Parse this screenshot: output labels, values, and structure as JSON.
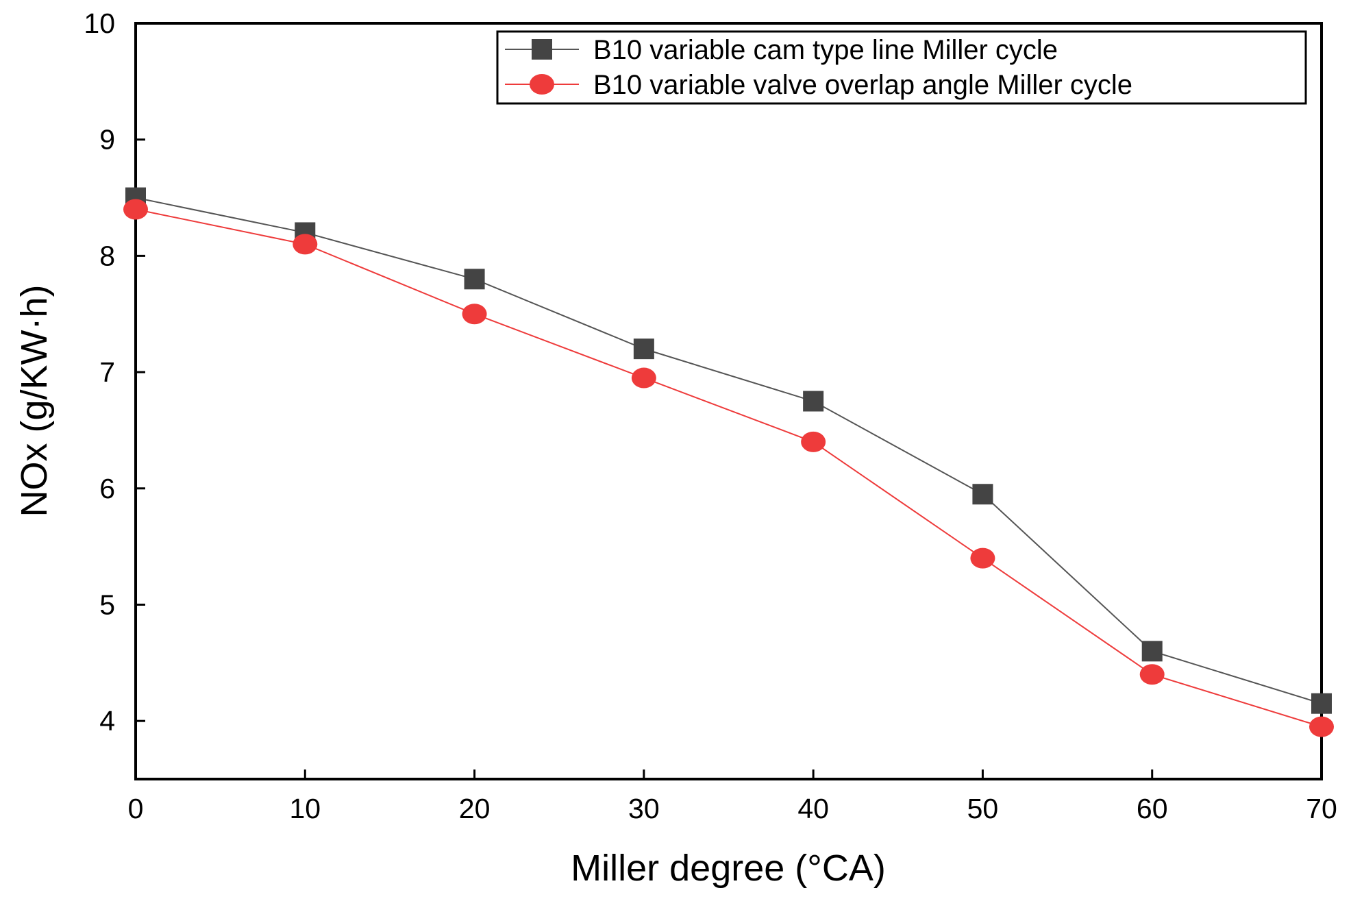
{
  "chart_data": {
    "type": "line",
    "title": "",
    "xlabel": "Miller degree (°CA)",
    "ylabel": "NOx (g/KW·h)",
    "x": [
      0,
      10,
      20,
      30,
      40,
      50,
      60,
      70
    ],
    "xlim": [
      0,
      70
    ],
    "ylim": [
      3.5,
      10
    ],
    "xticks": [
      0,
      10,
      20,
      30,
      40,
      50,
      60,
      70
    ],
    "yticks": [
      4,
      5,
      6,
      7,
      8,
      9,
      10
    ],
    "grid": false,
    "legend_position": "top-right",
    "series": [
      {
        "name": "B10 variable cam type line Miller cycle",
        "color": "#555555",
        "marker": "square",
        "values": [
          8.5,
          8.2,
          7.8,
          7.2,
          6.75,
          5.95,
          4.6,
          4.15
        ]
      },
      {
        "name": "B10 variable valve overlap angle Miller cycle",
        "color": "#ee3b3b",
        "marker": "circle",
        "values": [
          8.4,
          8.1,
          7.5,
          6.95,
          6.4,
          5.4,
          4.4,
          3.95
        ]
      }
    ]
  }
}
